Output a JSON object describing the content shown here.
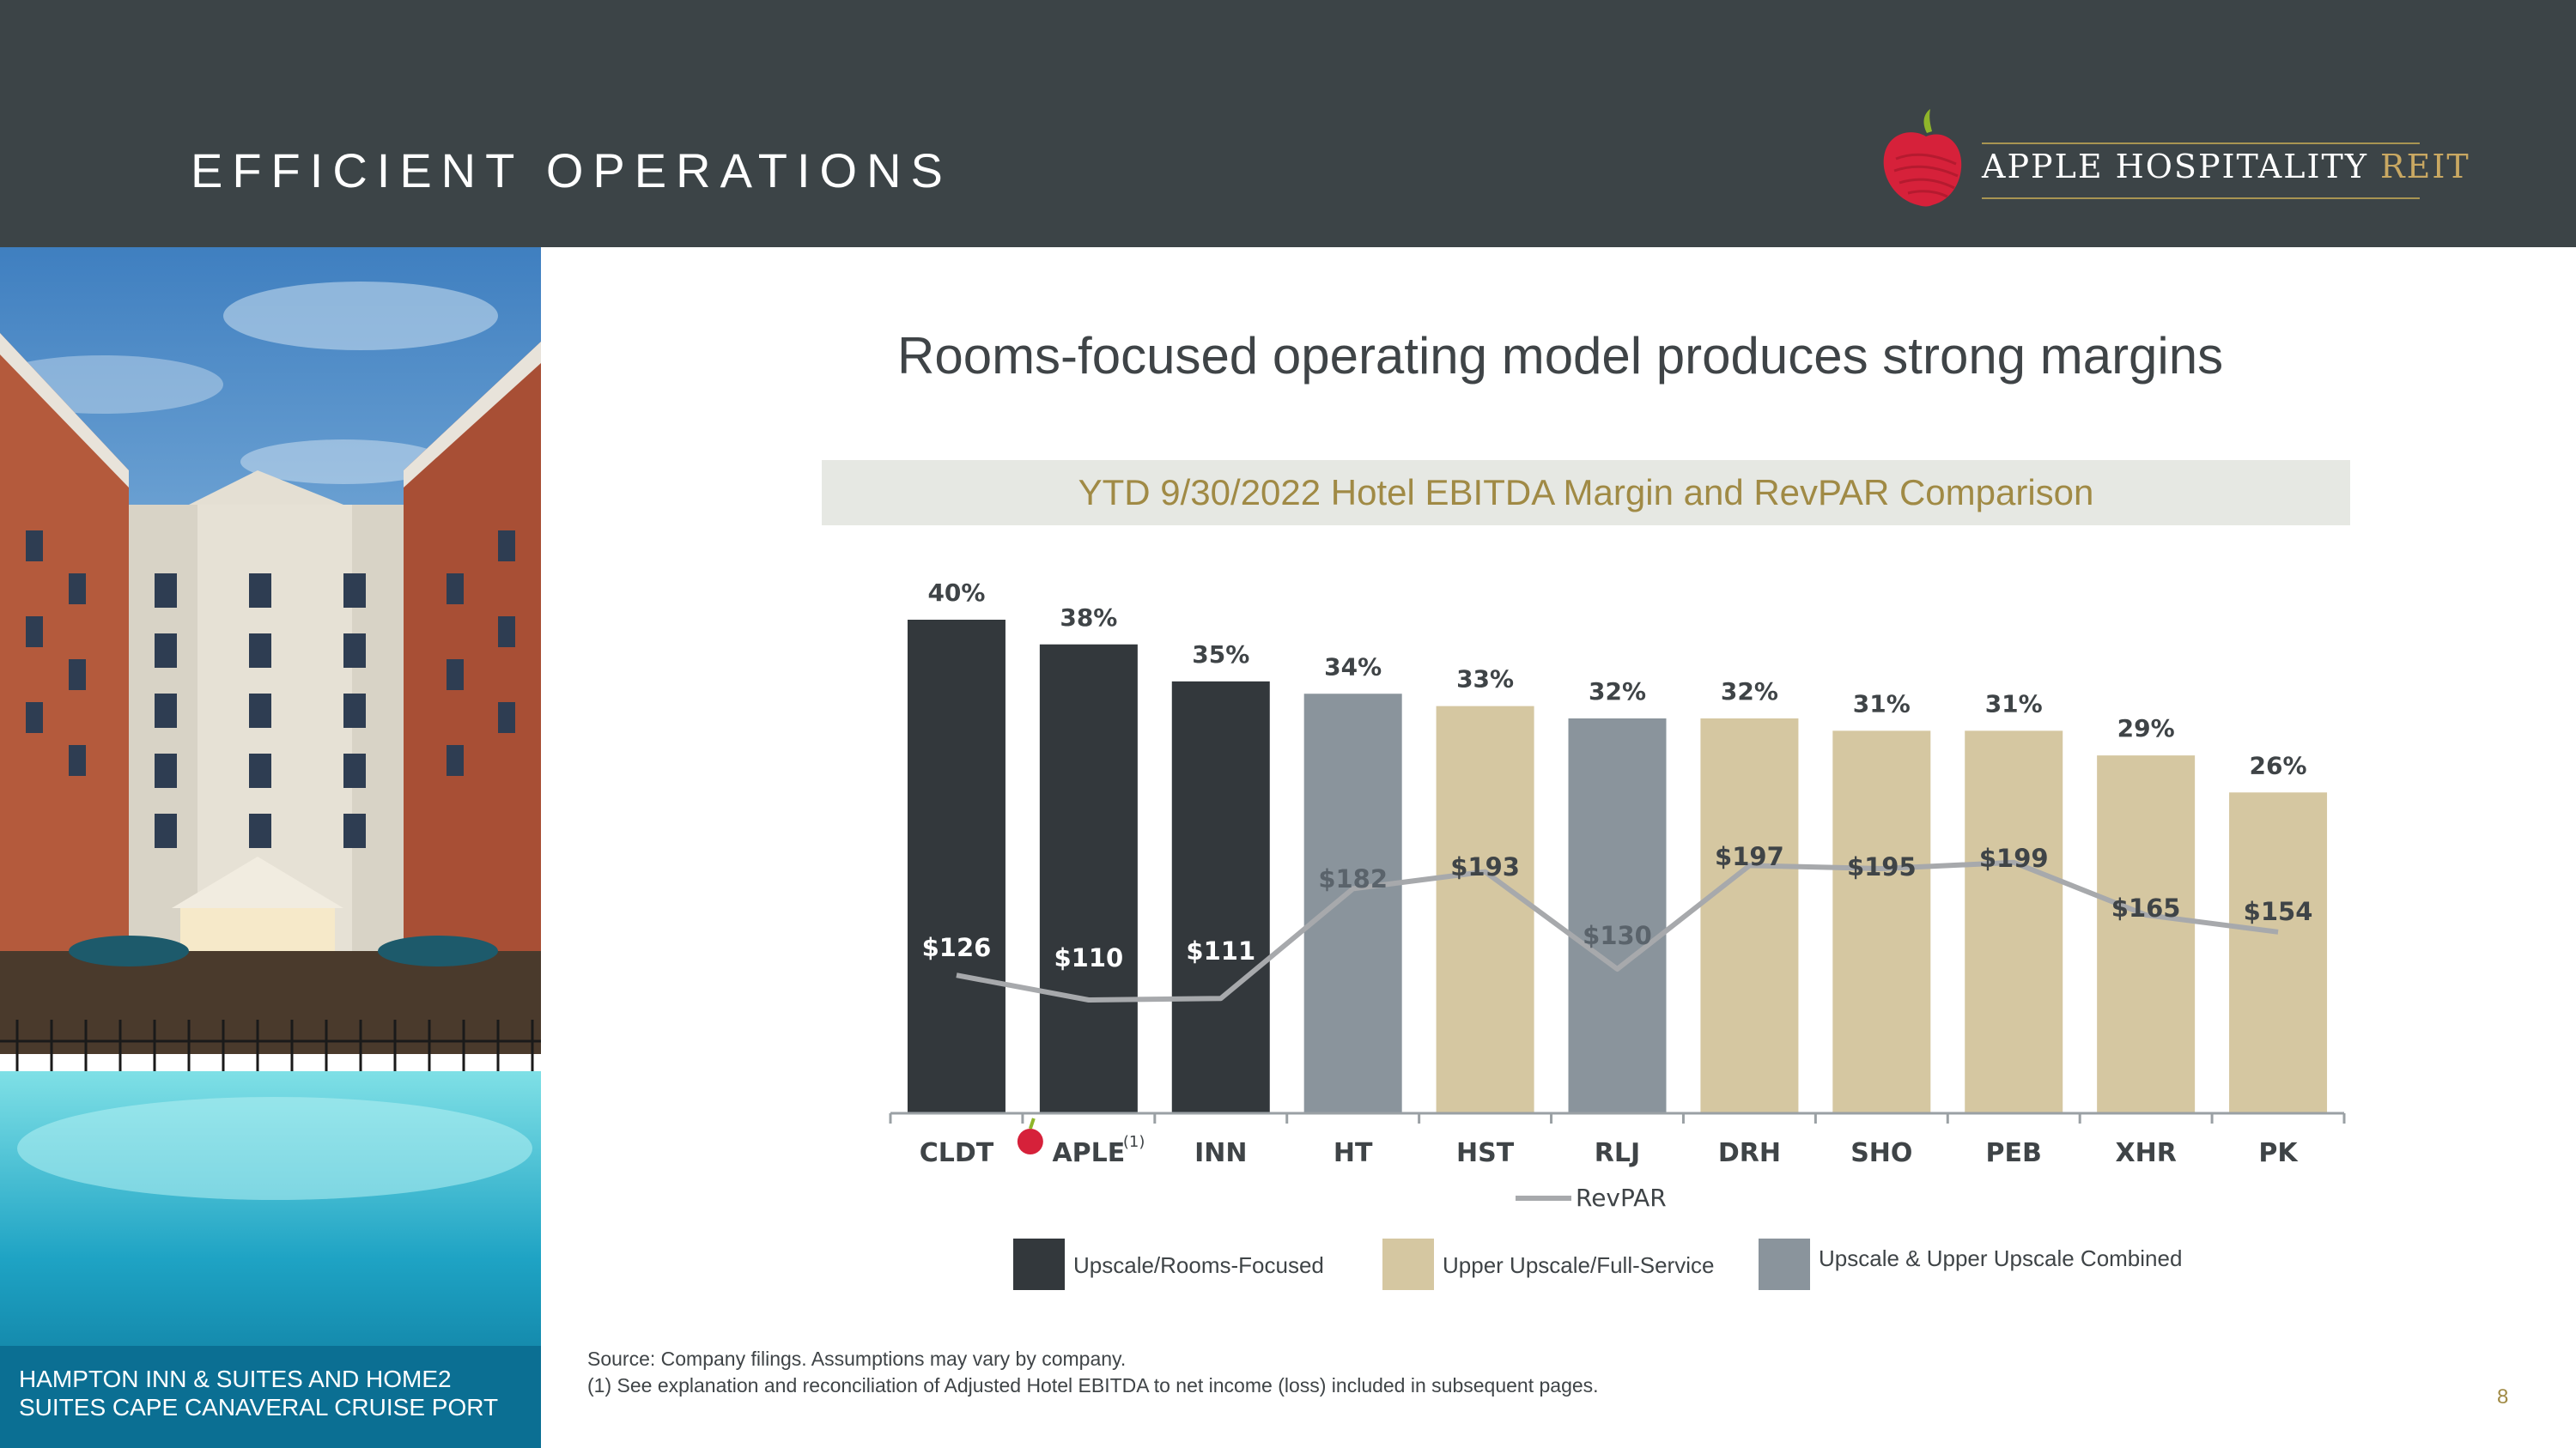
{
  "header": {
    "title": "EFFICIENT OPERATIONS",
    "logo": {
      "brand": "APPLE HOSPITALITY",
      "suffix": "REIT"
    }
  },
  "photo": {
    "caption": "HAMPTON INN & SUITES AND HOME2 SUITES CAPE CANAVERAL CRUISE PORT"
  },
  "main_title": "Rooms-focused operating model produces strong margins",
  "subtitle": "YTD 9/30/2022 Hotel EBITDA Margin and RevPAR Comparison",
  "colors": {
    "rooms_focused": "#33383c",
    "full_service": "#d5c7a1",
    "combined": "#8a949c",
    "revpar_line": "#a7a9ac",
    "accent_gold": "#a08a45",
    "header_bg": "#3c4447"
  },
  "chart_data": {
    "type": "bar",
    "title": "YTD 9/30/2022 Hotel EBITDA Margin and RevPAR Comparison",
    "categories": [
      "CLDT",
      "APLE",
      "INN",
      "HT",
      "HST",
      "RLJ",
      "DRH",
      "SHO",
      "PEB",
      "XHR",
      "PK"
    ],
    "aple_footnote_mark": "(1)",
    "ebitda_margin_pct": [
      40,
      38,
      35,
      34,
      33,
      32,
      32,
      31,
      31,
      29,
      26
    ],
    "margin_labels": [
      "40%",
      "38%",
      "35%",
      "34%",
      "33%",
      "32%",
      "32%",
      "31%",
      "31%",
      "29%",
      "26%"
    ],
    "segment": [
      "rooms_focused",
      "rooms_focused",
      "rooms_focused",
      "combined",
      "full_service",
      "combined",
      "full_service",
      "full_service",
      "full_service",
      "full_service",
      "full_service"
    ],
    "series": [
      {
        "name": "EBITDA Margin",
        "type": "bar",
        "values": [
          40,
          38,
          35,
          34,
          33,
          32,
          32,
          31,
          31,
          29,
          26
        ]
      },
      {
        "name": "RevPAR",
        "type": "line",
        "values": [
          126,
          110,
          111,
          182,
          193,
          130,
          197,
          195,
          199,
          165,
          154
        ]
      }
    ],
    "revpar_labels": [
      "$126",
      "$110",
      "$111",
      "$182",
      "$193",
      "$130",
      "$197",
      "$195",
      "$199",
      "$165",
      "$154"
    ],
    "line_legend": "RevPAR",
    "legend": [
      {
        "key": "rooms_focused",
        "label": "Upscale/Rooms-Focused"
      },
      {
        "key": "full_service",
        "label": "Upper Upscale/Full-Service"
      },
      {
        "key": "combined",
        "label": "Upscale & Upper Upscale Combined"
      }
    ],
    "ylim": [
      0,
      40
    ],
    "revpar_ylim": [
      0,
      400
    ]
  },
  "source": {
    "line1": "Source: Company filings. Assumptions may vary by company.",
    "line2": "(1)   See explanation and reconciliation of Adjusted Hotel EBITDA to net income (loss) included in subsequent pages."
  },
  "page_number": "8"
}
